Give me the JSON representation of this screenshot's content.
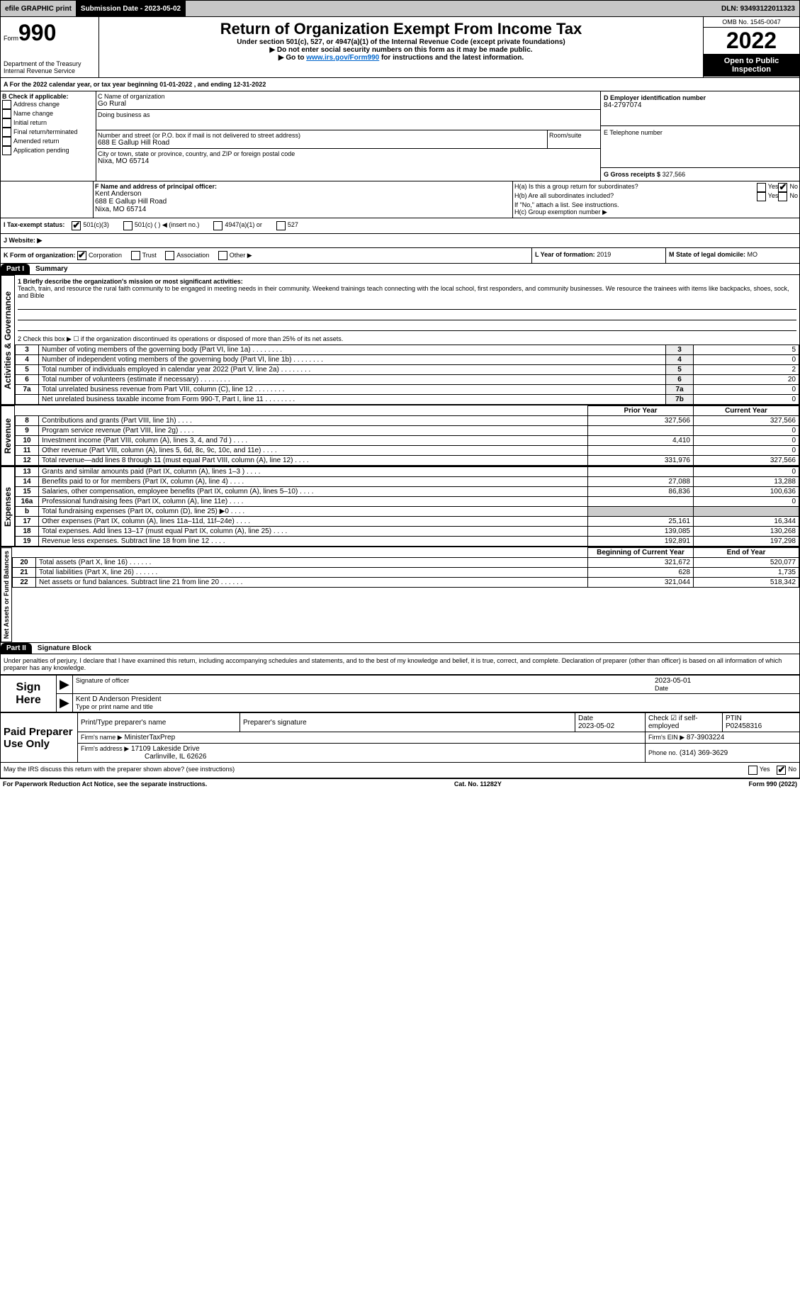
{
  "topbar": {
    "efile": "efile GRAPHIC print",
    "submission_label": "Submission Date - 2023-05-02",
    "dln": "DLN: 93493122011323"
  },
  "header": {
    "form_label_prefix": "Form",
    "form_number": "990",
    "title": "Return of Organization Exempt From Income Tax",
    "subtitle1": "Under section 501(c), 527, or 4947(a)(1) of the Internal Revenue Code (except private foundations)",
    "subtitle2": "▶ Do not enter social security numbers on this form as it may be made public.",
    "subtitle3_prefix": "▶ Go to ",
    "subtitle3_link": "www.irs.gov/Form990",
    "subtitle3_suffix": " for instructions and the latest information.",
    "dept": "Department of the Treasury",
    "irs": "Internal Revenue Service",
    "omb": "OMB No. 1545-0047",
    "year": "2022",
    "open_public": "Open to Public Inspection"
  },
  "period": {
    "line_a": "A For the 2022 calendar year, or tax year beginning 01-01-2022    , and ending 12-31-2022"
  },
  "boxB": {
    "title": "B Check if applicable:",
    "items": [
      "Address change",
      "Name change",
      "Initial return",
      "Final return/terminated",
      "Amended return",
      "Application pending"
    ]
  },
  "boxC": {
    "label_name": "C Name of organization",
    "org_name": "Go Rural",
    "dba_label": "Doing business as",
    "dba": "",
    "street_label": "Number and street (or P.O. box if mail is not delivered to street address)",
    "room_label": "Room/suite",
    "street": "688 E Gallup Hill Road",
    "city_label": "City or town, state or province, country, and ZIP or foreign postal code",
    "city": "Nixa, MO  65714"
  },
  "boxD": {
    "label": "D Employer identification number",
    "value": "84-2797074"
  },
  "boxE": {
    "label": "E Telephone number",
    "value": ""
  },
  "boxG": {
    "label": "G Gross receipts $",
    "value": "327,566"
  },
  "boxF": {
    "label": "F  Name and address of principal officer:",
    "name": "Kent Anderson",
    "addr1": "688 E Gallup Hill Road",
    "addr2": "Nixa, MO  65714"
  },
  "boxH": {
    "a_label": "H(a)  Is this a group return for subordinates?",
    "a_yes": "Yes",
    "a_no": "No",
    "b_label": "H(b)  Are all subordinates included?",
    "note": "If \"No,\" attach a list. See instructions.",
    "c_label": "H(c)  Group exemption number ▶"
  },
  "boxI": {
    "label": "I  Tax-exempt status:",
    "opts": [
      "501(c)(3)",
      "501(c) (  ) ◀ (insert no.)",
      "4947(a)(1) or",
      "527"
    ]
  },
  "boxJ": {
    "label": "J  Website: ▶"
  },
  "boxK": {
    "label": "K Form of organization:",
    "opts": [
      "Corporation",
      "Trust",
      "Association",
      "Other ▶"
    ]
  },
  "boxL": {
    "label": "L Year of formation:",
    "value": "2019"
  },
  "boxM": {
    "label": "M State of legal domicile:",
    "value": "MO"
  },
  "part1": {
    "header": "Part I",
    "title": "Summary",
    "q1_label": "1  Briefly describe the organization's mission or most significant activities:",
    "q1_text": "Teach, train, and resource the rural faith community to be engaged in meeting needs in their community. Weekend trainings teach connecting with the local school, first responders, and community businesses. We resource the trainees with items like backpacks, shoes, sock, and Bible",
    "q2": "2   Check this box ▶ ☐ if the organization discontinued its operations or disposed of more than 25% of its net assets.",
    "side_gov": "Activities & Governance",
    "side_rev": "Revenue",
    "side_exp": "Expenses",
    "side_net": "Net Assets or Fund Balances",
    "prior_year": "Prior Year",
    "current_year": "Current Year",
    "begin_year": "Beginning of Current Year",
    "end_year": "End of Year",
    "gov_rows": [
      {
        "n": "3",
        "t": "Number of voting members of the governing body (Part VI, line 1a)",
        "ref": "3",
        "v": "5"
      },
      {
        "n": "4",
        "t": "Number of independent voting members of the governing body (Part VI, line 1b)",
        "ref": "4",
        "v": "0"
      },
      {
        "n": "5",
        "t": "Total number of individuals employed in calendar year 2022 (Part V, line 2a)",
        "ref": "5",
        "v": "2"
      },
      {
        "n": "6",
        "t": "Total number of volunteers (estimate if necessary)",
        "ref": "6",
        "v": "20"
      },
      {
        "n": "7a",
        "t": "Total unrelated business revenue from Part VIII, column (C), line 12",
        "ref": "7a",
        "v": "0"
      },
      {
        "n": "",
        "t": "Net unrelated business taxable income from Form 990-T, Part I, line 11",
        "ref": "7b",
        "v": "0"
      }
    ],
    "rev_rows": [
      {
        "n": "8",
        "t": "Contributions and grants (Part VIII, line 1h)",
        "py": "327,566",
        "cy": "327,566"
      },
      {
        "n": "9",
        "t": "Program service revenue (Part VIII, line 2g)",
        "py": "",
        "cy": "0"
      },
      {
        "n": "10",
        "t": "Investment income (Part VIII, column (A), lines 3, 4, and 7d )",
        "py": "4,410",
        "cy": "0"
      },
      {
        "n": "11",
        "t": "Other revenue (Part VIII, column (A), lines 5, 6d, 8c, 9c, 10c, and 11e)",
        "py": "",
        "cy": "0"
      },
      {
        "n": "12",
        "t": "Total revenue—add lines 8 through 11 (must equal Part VIII, column (A), line 12)",
        "py": "331,976",
        "cy": "327,566"
      }
    ],
    "exp_rows": [
      {
        "n": "13",
        "t": "Grants and similar amounts paid (Part IX, column (A), lines 1–3 )",
        "py": "",
        "cy": "0"
      },
      {
        "n": "14",
        "t": "Benefits paid to or for members (Part IX, column (A), line 4)",
        "py": "27,088",
        "cy": "13,288"
      },
      {
        "n": "15",
        "t": "Salaries, other compensation, employee benefits (Part IX, column (A), lines 5–10)",
        "py": "86,836",
        "cy": "100,636"
      },
      {
        "n": "16a",
        "t": "Professional fundraising fees (Part IX, column (A), line 11e)",
        "py": "",
        "cy": "0"
      },
      {
        "n": "b",
        "t": "Total fundraising expenses (Part IX, column (D), line 25) ▶0",
        "py": "—shade—",
        "cy": "—shade—"
      },
      {
        "n": "17",
        "t": "Other expenses (Part IX, column (A), lines 11a–11d, 11f–24e)",
        "py": "25,161",
        "cy": "16,344"
      },
      {
        "n": "18",
        "t": "Total expenses. Add lines 13–17 (must equal Part IX, column (A), line 25)",
        "py": "139,085",
        "cy": "130,268"
      },
      {
        "n": "19",
        "t": "Revenue less expenses. Subtract line 18 from line 12",
        "py": "192,891",
        "cy": "197,298"
      }
    ],
    "net_rows": [
      {
        "n": "20",
        "t": "Total assets (Part X, line 16)",
        "py": "321,672",
        "cy": "520,077"
      },
      {
        "n": "21",
        "t": "Total liabilities (Part X, line 26)",
        "py": "628",
        "cy": "1,735"
      },
      {
        "n": "22",
        "t": "Net assets or fund balances. Subtract line 21 from line 20",
        "py": "321,044",
        "cy": "518,342"
      }
    ]
  },
  "part2": {
    "header": "Part II",
    "title": "Signature Block",
    "declaration": "Under penalties of perjury, I declare that I have examined this return, including accompanying schedules and statements, and to the best of my knowledge and belief, it is true, correct, and complete. Declaration of preparer (other than officer) is based on all information of which preparer has any knowledge."
  },
  "sign": {
    "label": "Sign Here",
    "sig_officer": "Signature of officer",
    "date_label": "Date",
    "date": "2023-05-01",
    "name_title": "Kent D Anderson  President",
    "type_label": "Type or print name and title"
  },
  "preparer": {
    "label": "Paid Preparer Use Only",
    "col1": "Print/Type preparer's name",
    "col2": "Preparer's signature",
    "col3_label": "Date",
    "col3_val": "2023-05-02",
    "col4_label": "Check ☑ if self-employed",
    "col5_label": "PTIN",
    "col5_val": "P02458316",
    "firm_name_label": "Firm's name    ▶",
    "firm_name": "MinisterTaxPrep",
    "firm_ein_label": "Firm's EIN ▶",
    "firm_ein": "87-3903224",
    "firm_addr_label": "Firm's address ▶",
    "firm_addr1": "17109 Lakeside Drive",
    "firm_addr2": "Carlinville, IL  62626",
    "phone_label": "Phone no.",
    "phone": "(314) 369-3629"
  },
  "discuss": {
    "text": "May the IRS discuss this return with the preparer shown above? (see instructions)",
    "yes": "Yes",
    "no": "No"
  },
  "footer": {
    "left": "For Paperwork Reduction Act Notice, see the separate instructions.",
    "mid": "Cat. No. 11282Y",
    "right": "Form 990 (2022)"
  }
}
